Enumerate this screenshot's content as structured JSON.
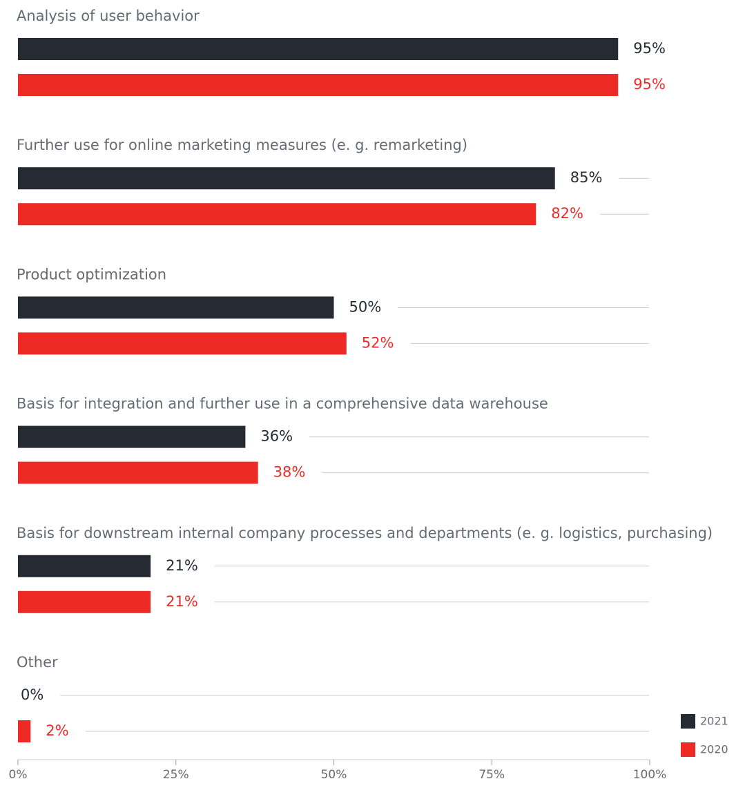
{
  "chart_data": {
    "type": "bar",
    "orientation": "horizontal",
    "categories": [
      "Analysis of user behavior",
      "Further use for online marketing measures (e. g. remarketing)",
      "Product optimization",
      "Basis for integration and further use in a comprehensive data warehouse",
      "Basis for downstream internal company processes and departments (e. g. logistics, purchasing)",
      "Other"
    ],
    "series": [
      {
        "name": "2021",
        "color": "#262b33",
        "values": [
          95,
          85,
          50,
          36,
          21,
          0
        ],
        "value_labels": [
          "95%",
          "85%",
          "50%",
          "36%",
          "21%",
          "0%"
        ]
      },
      {
        "name": "2020",
        "color": "#ee2a27",
        "values": [
          95,
          82,
          52,
          38,
          21,
          2
        ],
        "value_labels": [
          "95%",
          "82%",
          "52%",
          "38%",
          "21%",
          "2%"
        ]
      }
    ],
    "xlim": [
      0,
      100
    ],
    "xticks": [
      {
        "value": 0,
        "label": "0%"
      },
      {
        "value": 25,
        "label": "25%"
      },
      {
        "value": 50,
        "label": "50%"
      },
      {
        "value": 75,
        "label": "75%"
      },
      {
        "value": 100,
        "label": "100%"
      }
    ],
    "legend": "bottom-right"
  }
}
